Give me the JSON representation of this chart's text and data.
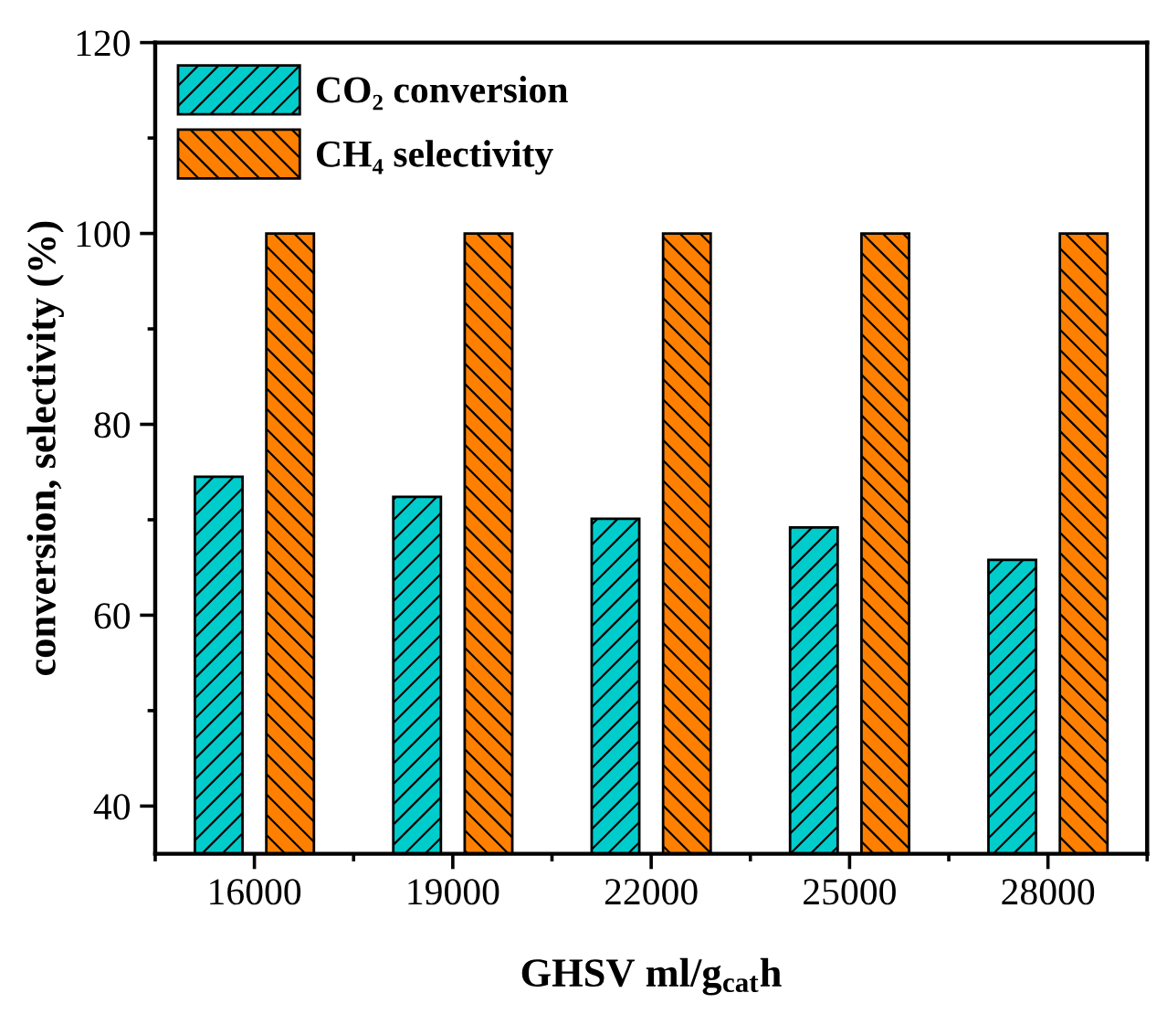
{
  "chart_data": {
    "type": "bar",
    "xlabel": "GHSV ml/g$_{cat}$h",
    "ylabel": "conversion, selectivity (%)",
    "categories": [
      "16000",
      "19000",
      "22000",
      "25000",
      "28000"
    ],
    "series": [
      {
        "name": "CO₂ conversion",
        "color": "#00cccc",
        "values": [
          74.5,
          72.4,
          70.1,
          69.2,
          65.8
        ]
      },
      {
        "name": "CH₄ selectivity",
        "color": "#ff8000",
        "values": [
          100,
          100,
          100,
          100,
          100
        ]
      }
    ],
    "ylim": [
      35,
      120
    ],
    "yticks": [
      40,
      60,
      80,
      100,
      120
    ],
    "grid": false,
    "legend": "top left"
  }
}
